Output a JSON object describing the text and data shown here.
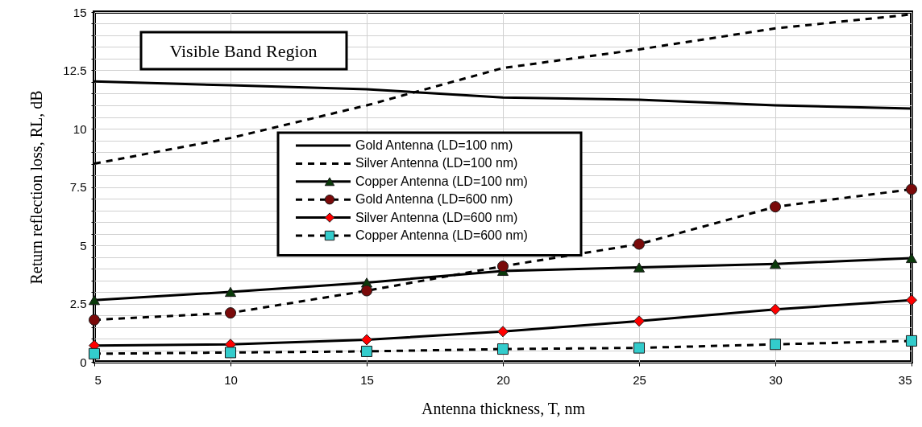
{
  "chart_data": {
    "type": "line",
    "xlabel": "Antenna thickness, T, nm",
    "ylabel": "Return reflection loss, RL, dB",
    "x": [
      5,
      10,
      15,
      20,
      25,
      30,
      35
    ],
    "series": [
      {
        "name": "Gold Antenna (LD=100 nm)",
        "color": "#000000",
        "marker": "none",
        "line_style": "solid",
        "values": [
          12.03,
          11.86,
          11.69,
          11.34,
          11.24,
          11.0,
          10.86
        ]
      },
      {
        "name": "Silver Antenna (LD=100 nm)",
        "color": "#000000",
        "marker": "none",
        "line_style": "dashed",
        "values": [
          8.5,
          9.6,
          11.0,
          12.6,
          13.4,
          14.3,
          14.9
        ]
      },
      {
        "name": "Copper Antenna (LD=100 nm)",
        "color": "#0a3a0a",
        "marker": "triangle",
        "line_style": "solid",
        "values": [
          2.65,
          3.0,
          3.4,
          3.9,
          4.05,
          4.2,
          4.45
        ]
      },
      {
        "name": "Gold Antenna (LD=600 nm)",
        "color": "#7a0a0a",
        "marker": "circle",
        "line_style": "dashed",
        "values": [
          1.8,
          2.1,
          3.05,
          4.1,
          5.05,
          6.65,
          7.4
        ]
      },
      {
        "name": "Silver Antenna (LD=600 nm)",
        "color": "#ff0000",
        "marker": "diamond",
        "line_style": "solid",
        "values": [
          0.7,
          0.75,
          0.95,
          1.3,
          1.75,
          2.25,
          2.65
        ]
      },
      {
        "name": "Copper Antenna (LD=600 nm)",
        "color": "#33cccc",
        "marker": "square",
        "line_style": "dashed",
        "values": [
          0.35,
          0.4,
          0.45,
          0.55,
          0.6,
          0.75,
          0.9
        ]
      }
    ],
    "xlim": [
      5,
      35
    ],
    "ylim": [
      0,
      15
    ],
    "xticks": [
      5,
      10,
      15,
      20,
      25,
      30,
      35
    ],
    "yticks": [
      0,
      {
        "value": 0.5,
        "label": null
      },
      {
        "value": 1,
        "label": null
      },
      {
        "value": 1.5,
        "label": null
      },
      {
        "value": 2,
        "label": null
      },
      2.5,
      {
        "value": 3,
        "label": null
      },
      {
        "value": 3.5,
        "label": null
      },
      {
        "value": 4,
        "label": null
      },
      {
        "value": 4.5,
        "label": null
      },
      5,
      {
        "value": 5.5,
        "label": null
      },
      {
        "value": 6,
        "label": null
      },
      {
        "value": 6.5,
        "label": null
      },
      {
        "value": 7,
        "label": null
      },
      7.5,
      {
        "value": 8,
        "label": null
      },
      {
        "value": 8.5,
        "label": null
      },
      {
        "value": 9,
        "label": null
      },
      {
        "value": 9.5,
        "label": null
      },
      10,
      {
        "value": 10.5,
        "label": null
      },
      {
        "value": 11,
        "label": null
      },
      {
        "value": 11.5,
        "label": null
      },
      {
        "value": 12,
        "label": null
      },
      12.5,
      {
        "value": 13,
        "label": null
      },
      {
        "value": 13.5,
        "label": null
      },
      {
        "value": 14,
        "label": null
      },
      {
        "value": 14.5,
        "label": null
      },
      15
    ],
    "grid": true,
    "legend": "center",
    "annotations": [
      "Visible Band Region"
    ]
  }
}
